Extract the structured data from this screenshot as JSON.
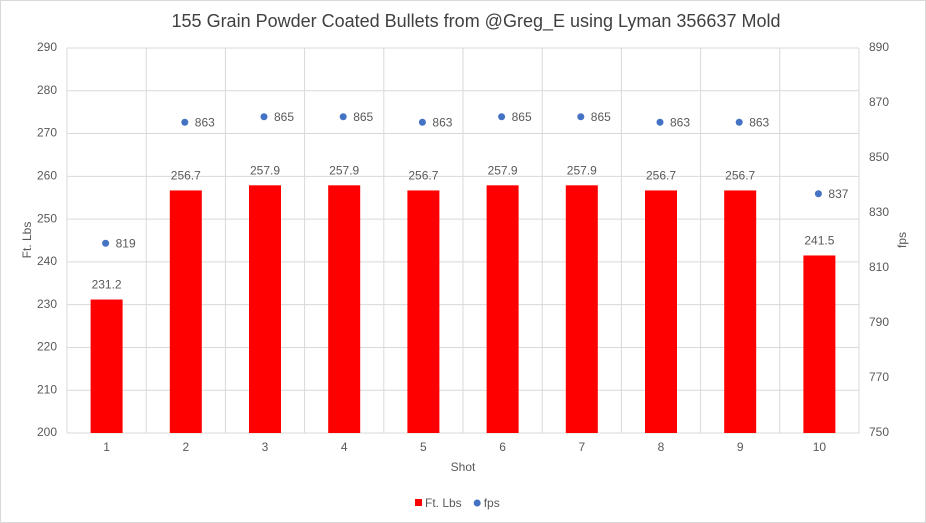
{
  "chart_data": {
    "type": "combo",
    "title": "155 Grain Powder Coated Bullets from @Greg_E using Lyman 356637 Mold",
    "x_label": "Shot",
    "y_label": "Ft. Lbs",
    "y2_label": "fps",
    "categories": [
      "1",
      "2",
      "3",
      "4",
      "5",
      "6",
      "7",
      "8",
      "9",
      "10"
    ],
    "series": [
      {
        "name": "Ft. Lbs",
        "type": "bar",
        "color": "#ff0000",
        "values": [
          231.2,
          256.7,
          257.9,
          257.9,
          256.7,
          257.9,
          257.9,
          256.7,
          256.7,
          241.5
        ]
      },
      {
        "name": "fps",
        "type": "scatter",
        "axis": "y2",
        "color": "#4472c4",
        "values": [
          819,
          863,
          865,
          865,
          863,
          865,
          865,
          863,
          863,
          837
        ]
      }
    ],
    "ylim": [
      200,
      290
    ],
    "yticks": [
      200,
      210,
      220,
      230,
      240,
      250,
      260,
      270,
      280,
      290
    ],
    "y2lim": [
      750,
      890
    ],
    "y2ticks": [
      750,
      770,
      790,
      810,
      830,
      850,
      870,
      890
    ],
    "grid": true,
    "legend": "bottom"
  }
}
